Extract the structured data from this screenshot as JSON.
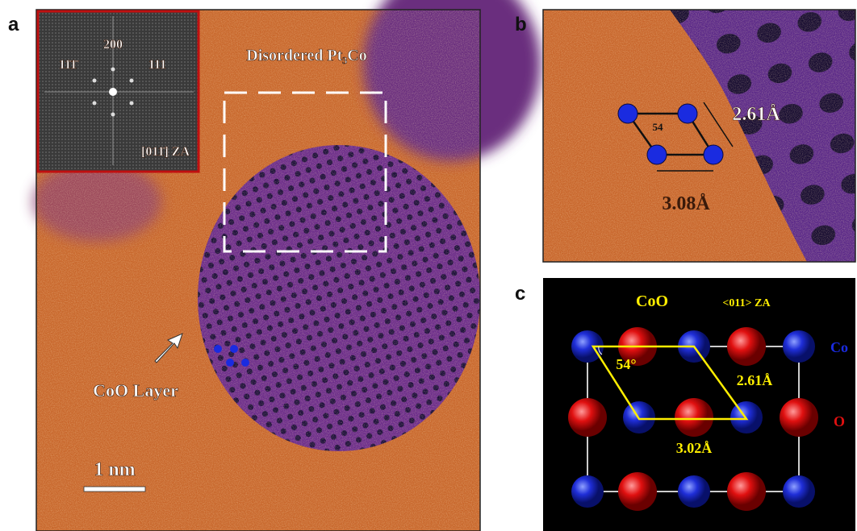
{
  "panels": {
    "a": {
      "label": "a",
      "title": "Disordered Pt₃Co",
      "fft": {
        "spot_top": "200",
        "spot_left": "11̄1̄",
        "spot_right": "111",
        "zone_axis": "[011̄] ZA"
      },
      "layer_label": "CoO Layer",
      "scale_bar": "1 nm"
    },
    "b": {
      "label": "b",
      "spacing_1": "2.61Å",
      "angle": "54",
      "spacing_2": "3.08Å"
    },
    "c": {
      "label": "c",
      "title": "CoO",
      "zone_axis": "<011> ZA",
      "legend_co": "Co",
      "legend_o": "O",
      "angle": "54°",
      "spacing_1": "2.61Å",
      "spacing_2": "3.02Å"
    }
  }
}
